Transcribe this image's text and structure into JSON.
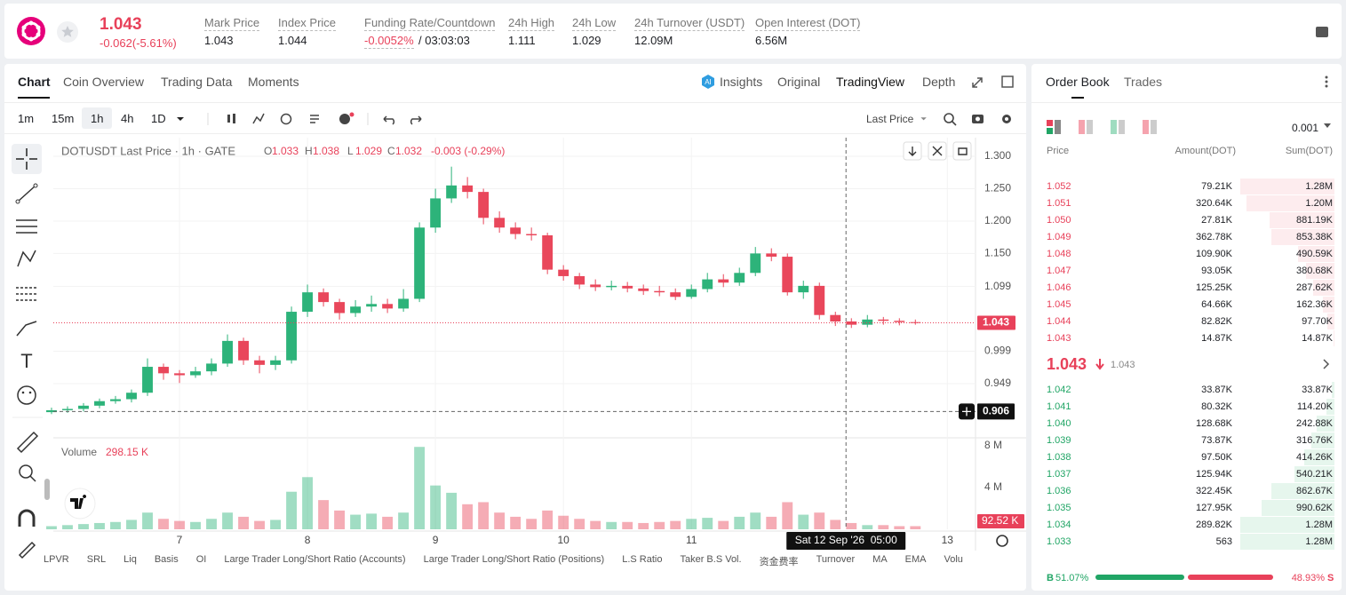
{
  "header": {
    "price": "1.043",
    "change": "-0.062(-5.61%)",
    "stats": [
      {
        "label": "Mark Price",
        "value": "1.043"
      },
      {
        "label": "Index Price",
        "value": "1.044"
      },
      {
        "label": "Funding Rate/Countdown",
        "value": "-0.0052%",
        "extra": "/ 03:03:03"
      },
      {
        "label": "24h High",
        "value": "1.111"
      },
      {
        "label": "24h Low",
        "value": "1.029"
      },
      {
        "label": "24h Turnover (USDT)",
        "value": "12.09M"
      },
      {
        "label": "Open Interest (DOT)",
        "value": "6.56M"
      }
    ]
  },
  "tabs": [
    "Chart",
    "Coin Overview",
    "Trading Data",
    "Moments"
  ],
  "views": [
    "Insights",
    "Original",
    "TradingView",
    "Depth"
  ],
  "intervals": [
    "1m",
    "15m",
    "1h",
    "4h",
    "1D"
  ],
  "price_type": "Last Price",
  "chart_data": {
    "type": "candlestick",
    "title": "DOTUSDT Last Price · 1h · GATE",
    "ohlc_legend": [
      {
        "key": "O",
        "value": "1.033"
      },
      {
        "key": "H",
        "value": "1.038"
      },
      {
        "key": "L",
        "value": "1.029"
      },
      {
        "key": "C",
        "value": "1.032"
      }
    ],
    "legend_change": "-0.003 (-0.29%)",
    "x": [
      6.0,
      6.125,
      6.25,
      6.375,
      6.5,
      6.625,
      6.75,
      6.875,
      7.0,
      7.125,
      7.25,
      7.375,
      7.5,
      7.625,
      7.75,
      7.875,
      8.0,
      8.125,
      8.25,
      8.375,
      8.5,
      8.625,
      8.75,
      8.875,
      9.0,
      9.125,
      9.25,
      9.375,
      9.5,
      9.625,
      9.75,
      9.875,
      10.0,
      10.125,
      10.25,
      10.375,
      10.5,
      10.625,
      10.75,
      10.875,
      11.0,
      11.125,
      11.25,
      11.375,
      11.5,
      11.625,
      11.75,
      11.875,
      12.0,
      12.125,
      12.25,
      12.375,
      12.5,
      12.625,
      12.75
    ],
    "open": [
      0.905,
      0.908,
      0.91,
      0.915,
      0.922,
      0.925,
      0.935,
      0.975,
      0.965,
      0.962,
      0.968,
      0.98,
      1.015,
      0.985,
      0.978,
      0.985,
      1.06,
      1.09,
      1.075,
      1.058,
      1.068,
      1.072,
      1.065,
      1.08,
      1.19,
      1.235,
      1.255,
      1.245,
      1.205,
      1.19,
      1.18,
      1.178,
      1.125,
      1.115,
      1.102,
      1.098,
      1.1,
      1.096,
      1.092,
      1.09,
      1.083,
      1.095,
      1.11,
      1.105,
      1.12,
      1.15,
      1.145,
      1.09,
      1.1,
      1.055,
      1.045,
      1.04,
      1.048,
      1.046,
      1.044
    ],
    "high": [
      0.912,
      0.914,
      0.919,
      0.926,
      0.93,
      0.94,
      0.988,
      0.98,
      0.97,
      0.975,
      0.988,
      1.025,
      1.02,
      0.992,
      0.992,
      1.068,
      1.102,
      1.096,
      1.08,
      1.078,
      1.085,
      1.08,
      1.095,
      1.198,
      1.25,
      1.284,
      1.268,
      1.25,
      1.215,
      1.198,
      1.19,
      1.182,
      1.132,
      1.12,
      1.11,
      1.108,
      1.106,
      1.102,
      1.1,
      1.096,
      1.102,
      1.12,
      1.118,
      1.128,
      1.16,
      1.158,
      1.15,
      1.108,
      1.105,
      1.06,
      1.05,
      1.055,
      1.052,
      1.05,
      1.048
    ],
    "low": [
      0.902,
      0.904,
      0.906,
      0.911,
      0.918,
      0.92,
      0.93,
      0.955,
      0.95,
      0.958,
      0.962,
      0.975,
      0.978,
      0.965,
      0.97,
      0.98,
      1.052,
      1.068,
      1.048,
      1.052,
      1.06,
      1.058,
      1.06,
      1.075,
      1.182,
      1.228,
      1.235,
      1.195,
      1.182,
      1.172,
      1.17,
      1.118,
      1.108,
      1.095,
      1.092,
      1.093,
      1.09,
      1.086,
      1.084,
      1.078,
      1.08,
      1.09,
      1.098,
      1.1,
      1.115,
      1.138,
      1.085,
      1.08,
      1.048,
      1.038,
      1.035,
      1.036,
      1.04,
      1.039,
      1.04
    ],
    "close": [
      0.908,
      0.91,
      0.915,
      0.922,
      0.925,
      0.935,
      0.975,
      0.965,
      0.962,
      0.968,
      0.98,
      1.015,
      0.985,
      0.978,
      0.985,
      1.06,
      1.09,
      1.075,
      1.058,
      1.068,
      1.072,
      1.065,
      1.08,
      1.19,
      1.235,
      1.255,
      1.245,
      1.205,
      1.19,
      1.18,
      1.178,
      1.125,
      1.115,
      1.102,
      1.098,
      1.1,
      1.096,
      1.092,
      1.09,
      1.083,
      1.095,
      1.11,
      1.105,
      1.12,
      1.15,
      1.145,
      1.09,
      1.1,
      1.055,
      1.045,
      1.04,
      1.048,
      1.046,
      1.044,
      1.043
    ],
    "up_color": "#2db37a",
    "down_color": "#e9475b",
    "xlim": [
      6.014,
      13.22
    ],
    "xticks": [
      7,
      8,
      9,
      10,
      11,
      13
    ],
    "ylim": [
      0.8695,
      1.3288
    ],
    "yticks": [
      {
        "value": 1.3,
        "label": "1.300"
      },
      {
        "value": 1.25,
        "label": "1.250"
      },
      {
        "value": 1.2,
        "label": "1.200"
      },
      {
        "value": 1.15,
        "label": "1.150"
      },
      {
        "value": 1.099,
        "label": "1.099"
      },
      {
        "value": 0.999,
        "label": "0.999"
      },
      {
        "value": 0.949,
        "label": "0.949"
      }
    ],
    "grid": true,
    "last_price": {
      "value": 1.043,
      "label": "1.043"
    },
    "crosshair_price": {
      "value": 0.906,
      "label": "0.906"
    },
    "crosshair_time": {
      "value": 12.208,
      "label": "Sat 12 Sep '26  05:00"
    },
    "volume": {
      "title": "Volume",
      "current": "298.15 K",
      "last_label": "92.52 K",
      "values": [
        0.3,
        0.4,
        0.5,
        0.6,
        0.7,
        0.9,
        1.6,
        1.0,
        0.8,
        0.7,
        1.0,
        1.6,
        1.2,
        0.8,
        0.9,
        3.6,
        5.0,
        2.8,
        1.8,
        1.4,
        1.5,
        1.2,
        1.6,
        7.9,
        4.2,
        3.5,
        2.4,
        2.6,
        1.6,
        1.2,
        1.0,
        1.8,
        1.3,
        1.0,
        0.8,
        0.7,
        0.7,
        0.6,
        0.7,
        0.8,
        1.0,
        1.1,
        0.8,
        1.2,
        1.6,
        1.2,
        2.6,
        1.4,
        1.6,
        0.9,
        0.6,
        0.4,
        0.4,
        0.3,
        0.3
      ],
      "ylim": [
        0,
        8.6
      ],
      "yticks": [
        {
          "value": 8,
          "label": "8 M"
        },
        {
          "value": 4,
          "label": "4 M"
        }
      ]
    }
  },
  "indicators": [
    "LPVR",
    "SRL",
    "Liq",
    "Basis",
    "OI",
    "Large Trader Long/Short Ratio (Accounts)",
    "Large Trader Long/Short Ratio (Positions)",
    "L.S Ratio",
    "Taker B.S Vol.",
    "资金费率",
    "Turnover",
    "MA",
    "EMA",
    "Volu"
  ],
  "order_book": {
    "tabs": [
      "Order Book",
      "Trades"
    ],
    "precision": "0.001",
    "headers": [
      "Price",
      "Amount(DOT)",
      "Sum(DOT)"
    ],
    "asks": [
      {
        "price": "1.052",
        "amount": "79.21K",
        "sum": {
          "value": 1280000,
          "label": "1.28M"
        }
      },
      {
        "price": "1.051",
        "amount": "320.64K",
        "sum": {
          "value": 1200000,
          "label": "1.20M"
        }
      },
      {
        "price": "1.050",
        "amount": "27.81K",
        "sum": {
          "value": 881190,
          "label": "881.19K"
        }
      },
      {
        "price": "1.049",
        "amount": "362.78K",
        "sum": {
          "value": 853380,
          "label": "853.38K"
        }
      },
      {
        "price": "1.048",
        "amount": "109.90K",
        "sum": {
          "value": 490590,
          "label": "490.59K"
        }
      },
      {
        "price": "1.047",
        "amount": "93.05K",
        "sum": {
          "value": 380680,
          "label": "380.68K"
        }
      },
      {
        "price": "1.046",
        "amount": "125.25K",
        "sum": {
          "value": 287620,
          "label": "287.62K"
        }
      },
      {
        "price": "1.045",
        "amount": "64.66K",
        "sum": {
          "value": 162360,
          "label": "162.36K"
        }
      },
      {
        "price": "1.044",
        "amount": "82.82K",
        "sum": {
          "value": 97700,
          "label": "97.70K"
        }
      },
      {
        "price": "1.043",
        "amount": "14.87K",
        "sum": {
          "value": 14870,
          "label": "14.87K"
        }
      }
    ],
    "mid": {
      "price": "1.043",
      "mark": "1.043"
    },
    "bids": [
      {
        "price": "1.042",
        "amount": "33.87K",
        "sum": {
          "value": 33870,
          "label": "33.87K"
        }
      },
      {
        "price": "1.041",
        "amount": "80.32K",
        "sum": {
          "value": 114200,
          "label": "114.20K"
        }
      },
      {
        "price": "1.040",
        "amount": "128.68K",
        "sum": {
          "value": 242880,
          "label": "242.88K"
        }
      },
      {
        "price": "1.039",
        "amount": "73.87K",
        "sum": {
          "value": 316760,
          "label": "316.76K"
        }
      },
      {
        "price": "1.038",
        "amount": "97.50K",
        "sum": {
          "value": 414260,
          "label": "414.26K"
        }
      },
      {
        "price": "1.037",
        "amount": "125.94K",
        "sum": {
          "value": 540210,
          "label": "540.21K"
        }
      },
      {
        "price": "1.036",
        "amount": "322.45K",
        "sum": {
          "value": 862670,
          "label": "862.67K"
        }
      },
      {
        "price": "1.035",
        "amount": "127.95K",
        "sum": {
          "value": 990620,
          "label": "990.62K"
        }
      },
      {
        "price": "1.034",
        "amount": "289.82K",
        "sum": {
          "value": 1280000,
          "label": "1.28M"
        }
      },
      {
        "price": "1.033",
        "amount": "563",
        "sum": {
          "value": 1280000,
          "label": "1.28M"
        }
      }
    ],
    "buy_letter": "B",
    "sell_letter": "S",
    "buy": {
      "value": 51.07,
      "label": "51.07%"
    },
    "sell": {
      "value": 48.93,
      "label": "48.93%"
    }
  }
}
